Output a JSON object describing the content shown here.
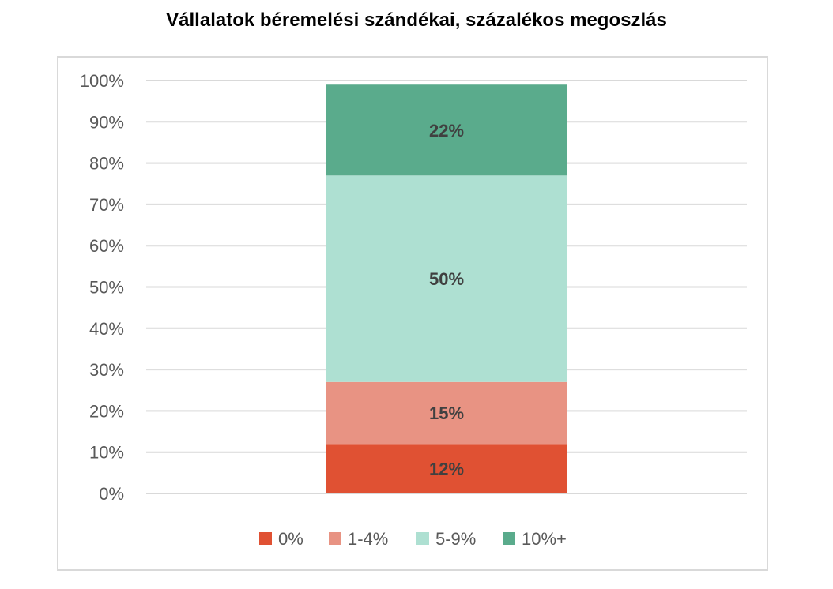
{
  "chart_data": {
    "type": "bar",
    "stacked": true,
    "percent": true,
    "title": "Vállalatok béremelési szándékai, százalékos megoszlás",
    "categories": [
      ""
    ],
    "ylim": [
      0,
      100
    ],
    "yticks": [
      "0%",
      "10%",
      "20%",
      "30%",
      "40%",
      "50%",
      "60%",
      "70%",
      "80%",
      "90%",
      "100%"
    ],
    "grid": true,
    "legend_position": "bottom",
    "series": [
      {
        "name": "0%",
        "values": [
          12
        ],
        "label": "12%",
        "color": "#e05133"
      },
      {
        "name": "1-4%",
        "values": [
          15
        ],
        "label": "15%",
        "color": "#e89383"
      },
      {
        "name": "5-9%",
        "values": [
          50
        ],
        "label": "50%",
        "color": "#aee0d2"
      },
      {
        "name": "10%+",
        "values": [
          22
        ],
        "label": "22%",
        "color": "#5aab8c"
      }
    ]
  }
}
